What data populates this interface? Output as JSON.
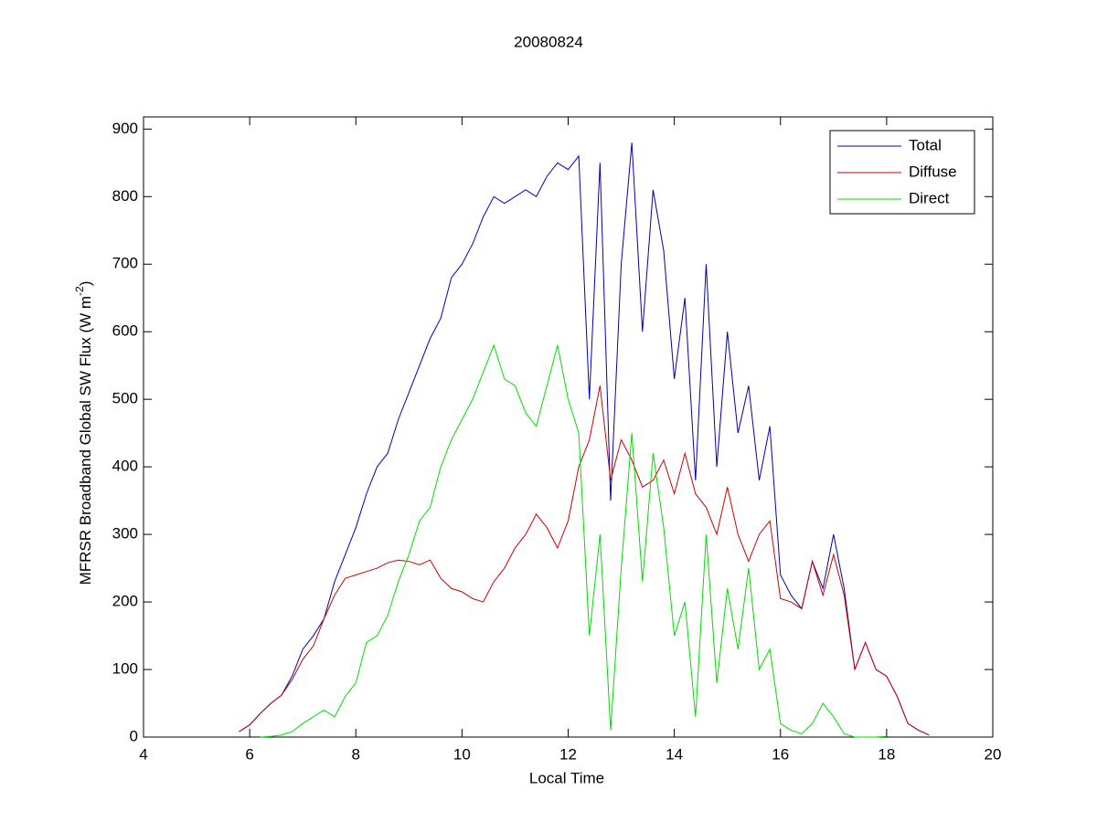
{
  "chart_data": {
    "type": "line",
    "title": "20080824",
    "xlabel": "Local Time",
    "ylabel": {
      "text": "MFRSR Broadband Global SW Flux (W m",
      "superscript": "-2",
      "suffix": ")"
    },
    "xlim": [
      4,
      20
    ],
    "xticks": [
      4,
      6,
      8,
      10,
      12,
      14,
      16,
      18,
      20
    ],
    "ylim": [
      0,
      918
    ],
    "yticks": [
      0,
      100,
      200,
      300,
      400,
      500,
      600,
      700,
      800,
      900
    ],
    "legend": "northeast",
    "x": [
      5.8,
      6.0,
      6.2,
      6.4,
      6.6,
      6.8,
      7.0,
      7.2,
      7.4,
      7.6,
      7.8,
      8.0,
      8.2,
      8.4,
      8.6,
      8.8,
      9.0,
      9.2,
      9.4,
      9.6,
      9.8,
      10.0,
      10.2,
      10.4,
      10.6,
      10.8,
      11.0,
      11.2,
      11.4,
      11.6,
      11.8,
      12.0,
      12.2,
      12.4,
      12.6,
      12.8,
      13.0,
      13.2,
      13.4,
      13.6,
      13.8,
      14.0,
      14.2,
      14.4,
      14.6,
      14.8,
      15.0,
      15.2,
      15.4,
      15.6,
      15.8,
      16.0,
      16.2,
      16.4,
      16.6,
      16.8,
      17.0,
      17.2,
      17.4,
      17.6,
      17.8,
      18.0,
      18.2,
      18.4,
      18.6,
      18.8
    ],
    "series": [
      {
        "name": "Total",
        "color": "#0000b0",
        "values": [
          8,
          18,
          35,
          50,
          62,
          90,
          130,
          150,
          175,
          230,
          270,
          310,
          360,
          400,
          420,
          470,
          510,
          550,
          590,
          620,
          680,
          700,
          730,
          770,
          800,
          790,
          800,
          810,
          800,
          830,
          850,
          840,
          860,
          500,
          850,
          350,
          700,
          880,
          600,
          810,
          720,
          530,
          650,
          380,
          700,
          400,
          600,
          450,
          520,
          380,
          460,
          240,
          210,
          190,
          260,
          220,
          300,
          220,
          100,
          140,
          100,
          90,
          60,
          20,
          10,
          3
        ]
      },
      {
        "name": "Diffuse",
        "color": "#cc0000",
        "values": [
          8,
          18,
          35,
          50,
          62,
          85,
          115,
          135,
          175,
          210,
          235,
          240,
          245,
          250,
          258,
          262,
          260,
          255,
          262,
          235,
          220,
          215,
          205,
          200,
          230,
          250,
          280,
          300,
          330,
          310,
          280,
          320,
          400,
          440,
          520,
          380,
          440,
          410,
          370,
          380,
          410,
          360,
          420,
          360,
          340,
          300,
          370,
          300,
          260,
          300,
          320,
          205,
          200,
          190,
          260,
          210,
          270,
          210,
          100,
          140,
          100,
          90,
          60,
          20,
          10,
          3
        ]
      },
      {
        "name": "Direct",
        "color": "#00dd00",
        "values": [
          null,
          null,
          0,
          1,
          3,
          8,
          20,
          30,
          40,
          30,
          60,
          80,
          140,
          150,
          180,
          230,
          270,
          320,
          340,
          400,
          440,
          470,
          500,
          540,
          580,
          530,
          520,
          480,
          460,
          520,
          580,
          500,
          450,
          150,
          300,
          10,
          250,
          450,
          230,
          420,
          310,
          150,
          200,
          30,
          300,
          80,
          220,
          130,
          250,
          100,
          130,
          20,
          10,
          5,
          20,
          50,
          30,
          5,
          0,
          0,
          0,
          1,
          null,
          null,
          null,
          null
        ]
      }
    ]
  }
}
